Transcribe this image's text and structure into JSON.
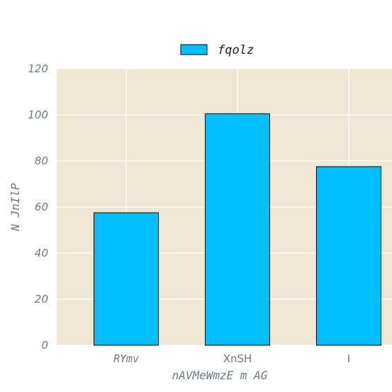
{
  "chart_data": {
    "type": "bar",
    "categories": [
      "RYmv",
      "XnSH",
      "I"
    ],
    "series": [
      {
        "name": "fqolz",
        "values": [
          57.5,
          100.5,
          77.5
        ]
      }
    ],
    "xlabel": "nAVMeWmzE m AG",
    "ylabel": "N JnIlP",
    "ylim": [
      0,
      120
    ],
    "yticks": [
      "0",
      "20",
      "40",
      "60",
      "80",
      "100",
      "120"
    ],
    "grid": true,
    "legend_position": "top-center",
    "colors": {
      "bar": "#00bfff",
      "plot_background": "#efe7d4",
      "grid": "#ffffff",
      "text": "#6b7b85"
    }
  }
}
